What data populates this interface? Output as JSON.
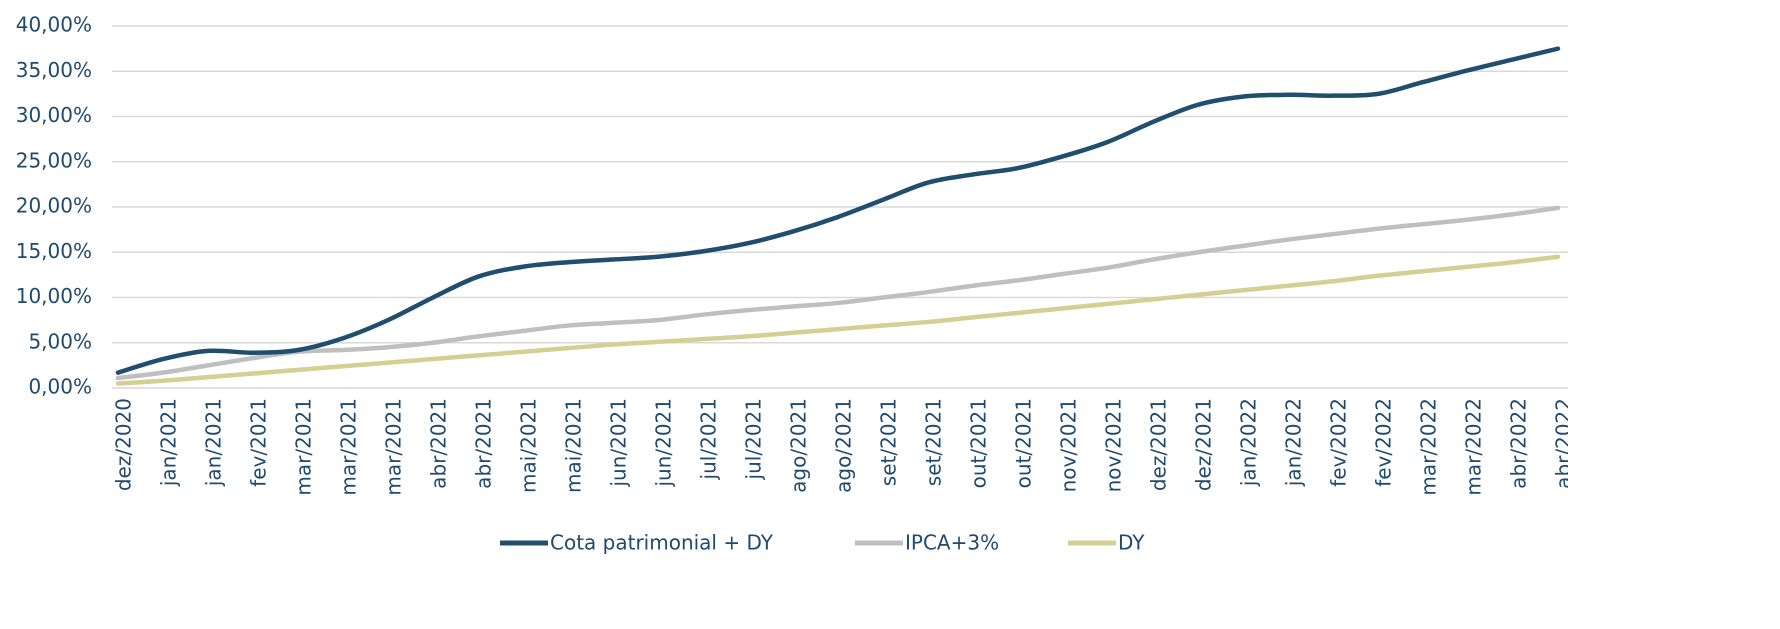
{
  "chart_data": {
    "type": "line",
    "categories": [
      "dez/2020",
      "jan/2021",
      "jan/2021",
      "fev/2021",
      "mar/2021",
      "mar/2021",
      "mar/2021",
      "abr/2021",
      "abr/2021",
      "mai/2021",
      "mai/2021",
      "jun/2021",
      "jun/2021",
      "jul/2021",
      "jul/2021",
      "ago/2021",
      "ago/2021",
      "set/2021",
      "set/2021",
      "out/2021",
      "out/2021",
      "nov/2021",
      "nov/2021",
      "dez/2021",
      "dez/2021",
      "jan/2022",
      "jan/2022",
      "fev/2022",
      "fev/2022",
      "mar/2022",
      "mar/2022",
      "abr/2022",
      "abr/2022"
    ],
    "series": [
      {
        "name": "Cota patrimonial + DY",
        "color": "#1f4e6e",
        "values": [
          1.7,
          3.2,
          4.1,
          3.9,
          4.2,
          5.5,
          7.5,
          10,
          12.3,
          13.4,
          13.9,
          14.2,
          14.5,
          15.1,
          16,
          17.3,
          18.9,
          20.8,
          22.7,
          23.6,
          24.3,
          25.6,
          27.2,
          29.4,
          31.3,
          32.2,
          32.4,
          32.3,
          32.5,
          33.8,
          35.1,
          36.3,
          37.5
        ]
      },
      {
        "name": "IPCA+3%",
        "color": "#bfbfbf",
        "values": [
          1.1,
          1.7,
          2.5,
          3.3,
          4.0,
          4.2,
          4.5,
          5.0,
          5.7,
          6.3,
          6.9,
          7.2,
          7.5,
          8.1,
          8.6,
          9.0,
          9.4,
          10.0,
          10.6,
          11.3,
          11.9,
          12.6,
          13.3,
          14.2,
          15.0,
          15.7,
          16.4,
          17.0,
          17.6,
          18.1,
          18.6,
          19.2,
          19.9
        ]
      },
      {
        "name": "DY",
        "color": "#d6cf93",
        "values": [
          0.5,
          0.8,
          1.2,
          1.6,
          2.0,
          2.4,
          2.8,
          3.2,
          3.6,
          4.0,
          4.4,
          4.8,
          5.1,
          5.4,
          5.7,
          6.1,
          6.5,
          6.9,
          7.3,
          7.8,
          8.3,
          8.8,
          9.3,
          9.8,
          10.3,
          10.8,
          11.3,
          11.8,
          12.4,
          12.9,
          13.4,
          13.9,
          14.5
        ]
      }
    ],
    "ylim": [
      0,
      40
    ],
    "yticks": [
      {
        "value": 0,
        "label": "0,00%"
      },
      {
        "value": 5,
        "label": "5,00%"
      },
      {
        "value": 10,
        "label": "10,00%"
      },
      {
        "value": 15,
        "label": "15,00%"
      },
      {
        "value": 20,
        "label": "20,00%"
      },
      {
        "value": 25,
        "label": "25,00%"
      },
      {
        "value": 30,
        "label": "30,00%"
      },
      {
        "value": 35,
        "label": "35,00%"
      },
      {
        "value": 40,
        "label": "40,00%"
      }
    ],
    "grid": true,
    "legend": "bottom"
  }
}
